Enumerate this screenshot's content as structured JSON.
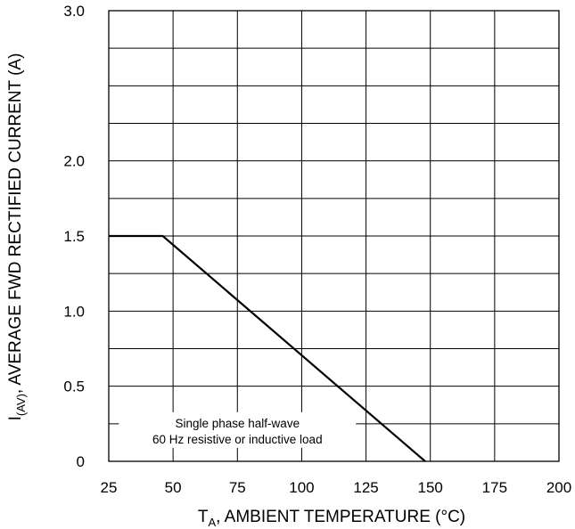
{
  "chart_data": {
    "type": "line",
    "xlabel_main": "T",
    "xlabel_sub": "A",
    "xlabel_rest": ", AMBIENT TEMPERATURE (°C)",
    "ylabel_main": "I",
    "ylabel_sub": "(AV)",
    "ylabel_rest": ", AVERAGE FWD RECTIFIED CURRENT (A)",
    "xlim": [
      25,
      200
    ],
    "ylim": [
      0,
      3.0
    ],
    "x_ticks": [
      {
        "value": 25,
        "label": "25"
      },
      {
        "value": 50,
        "label": "50"
      },
      {
        "value": 75,
        "label": "75"
      },
      {
        "value": 100,
        "label": "100"
      },
      {
        "value": 125,
        "label": "125"
      },
      {
        "value": 150,
        "label": "150"
      },
      {
        "value": 175,
        "label": "175"
      },
      {
        "value": 200,
        "label": "200"
      }
    ],
    "y_ticks": [
      {
        "value": 0,
        "label": "0"
      },
      {
        "value": 0.5,
        "label": "0.5"
      },
      {
        "value": 1.0,
        "label": "1.0"
      },
      {
        "value": 1.5,
        "label": "1.5"
      },
      {
        "value": 2.0,
        "label": "2.0"
      },
      {
        "value": 3.0,
        "label": "3.0"
      }
    ],
    "y_gridlines": [
      0,
      0.25,
      0.5,
      0.75,
      1.0,
      1.25,
      1.5,
      1.75,
      2.0,
      2.25,
      2.5,
      2.75,
      3.0
    ],
    "grid": true,
    "series": [
      {
        "x": [
          25,
          46,
          148
        ],
        "y": [
          1.5,
          1.5,
          0
        ]
      }
    ],
    "annotation": {
      "lines": [
        "Single phase half-wave",
        "60 Hz resistive or inductive load"
      ],
      "x": 75,
      "y": 0.25
    }
  }
}
